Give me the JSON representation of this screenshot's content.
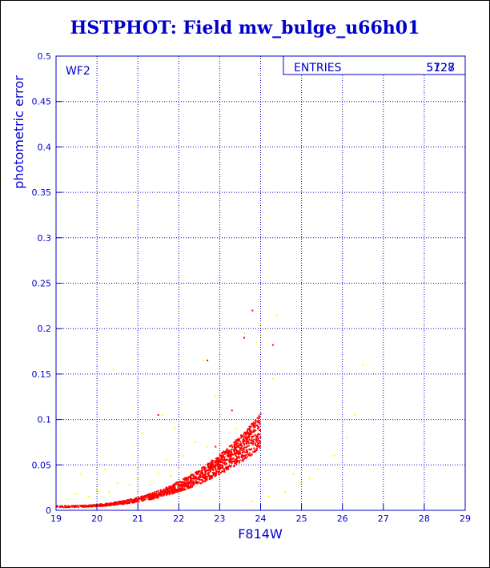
{
  "title": "HSTPHOT: Field mw_bulge_u66h01",
  "chart_data": {
    "type": "scatter",
    "title": "HSTPHOT: Field mw_bulge_u66h01",
    "xlabel": "F814W",
    "ylabel": "photometric error",
    "xlim": [
      19,
      29
    ],
    "ylim": [
      0,
      0.5
    ],
    "grid": true,
    "panel_label": "WF2",
    "stats": {
      "label": "ENTRIES",
      "value": "5727",
      "value_overlay": "5128"
    },
    "x_ticks": [
      "19",
      "20",
      "21",
      "22",
      "23",
      "24",
      "25",
      "26",
      "27",
      "28",
      "29"
    ],
    "y_ticks": [
      "0",
      "0.05",
      "0.1",
      "0.15",
      "0.2",
      "0.25",
      "0.3",
      "0.35",
      "0.4",
      "0.45",
      "0.5"
    ],
    "series": [
      {
        "color": "#ffff00",
        "x": [
          19.5,
          20.0,
          20.5,
          21.0,
          21.5,
          22.0,
          22.5,
          19.3,
          19.8,
          20.3,
          20.8,
          21.3,
          21.8,
          22.3,
          22.8,
          23.2,
          20.4,
          21.1,
          21.6,
          22.1,
          22.6,
          23.4,
          23.8,
          24.2,
          24.6,
          25.0,
          25.4,
          25.8,
          26.1,
          26.3,
          26.5,
          24.4,
          23.9,
          24.0,
          23.6,
          22.4,
          22.7,
          21.7,
          20.2,
          19.6,
          21.9,
          22.9,
          24.3,
          24.8,
          25.2
        ],
        "y": [
          0.018,
          0.022,
          0.03,
          0.035,
          0.04,
          0.045,
          0.05,
          0.012,
          0.015,
          0.02,
          0.028,
          0.032,
          0.038,
          0.042,
          0.048,
          0.06,
          0.155,
          0.085,
          0.105,
          0.06,
          0.165,
          0.09,
          0.01,
          0.015,
          0.02,
          0.03,
          0.045,
          0.06,
          0.08,
          0.105,
          0.16,
          0.215,
          0.185,
          0.205,
          0.195,
          0.075,
          0.07,
          0.055,
          0.045,
          0.04,
          0.09,
          0.125,
          0.145,
          0.04,
          0.035
        ]
      },
      {
        "color": "#ff0000",
        "curve": {
          "x_start": 19.0,
          "x_end": 24.0,
          "y_at_start": 0.004,
          "y_at_end": 0.085
        },
        "x": [
          21.5,
          22.7,
          23.3,
          23.6,
          23.8,
          24.3,
          22.9
        ],
        "y": [
          0.105,
          0.165,
          0.11,
          0.19,
          0.22,
          0.182,
          0.07
        ]
      }
    ]
  }
}
